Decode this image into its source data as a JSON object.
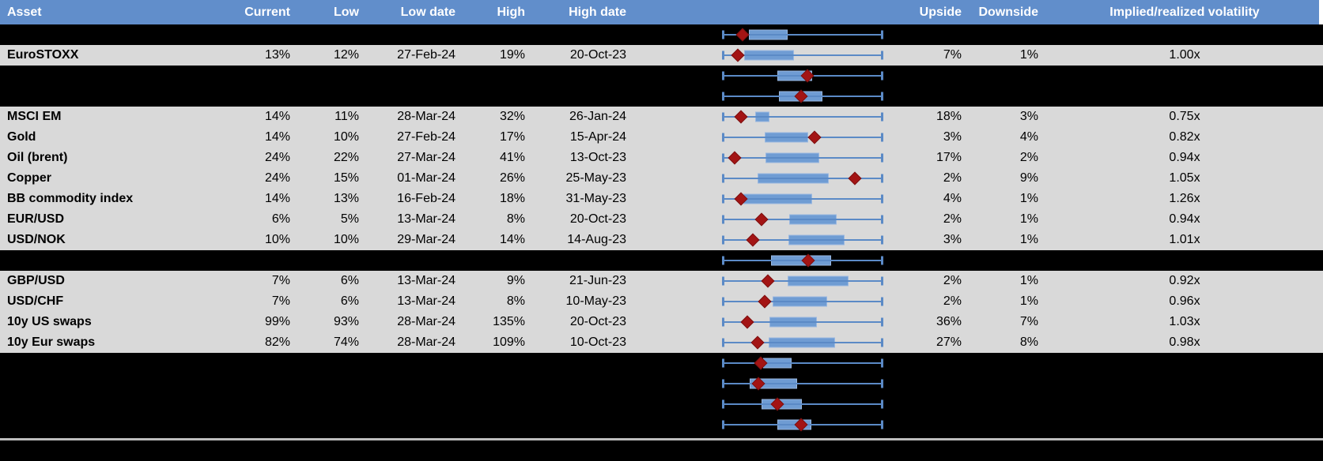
{
  "header": {
    "columns": [
      "Asset",
      "Current",
      "Low",
      "Low date",
      "High",
      "High date",
      "",
      "Upside",
      "Downside",
      "Implied/realized volatility"
    ]
  },
  "colors": {
    "header_bg": "#618ecb",
    "header_text": "#ffffff",
    "data_row_bg": "#d9d9d9",
    "blank_row_bg": "#000000",
    "text": "#000000",
    "whisker_blue": "#5b8ac6",
    "box_fill_blue": "#6f9cd3",
    "box_border_blue": "#9ab8e0",
    "marker_red": "#a31414",
    "divider_gray": "#bdbdbd"
  },
  "chart_note": "Each row has a horizontal box-whisker plot; box_lo/box_hi/marker are percents of the whisker span (left cap = 0, right cap = 100). Marker is a red diamond (current level within 1y range).",
  "rows": [
    {
      "type": "blank",
      "asset": "",
      "current": "",
      "low": "",
      "low_date": "",
      "high": "",
      "high_date": "",
      "upside": "",
      "downside": "",
      "impl_real": "",
      "box": {
        "lo": 16.7,
        "hi": 40.7,
        "marker": 12.7
      }
    },
    {
      "type": "data",
      "asset": "EuroSTOXX",
      "current": "13%",
      "low": "12%",
      "low_date": "27-Feb-24",
      "high": "19%",
      "high_date": "20-Oct-23",
      "upside": "7%",
      "downside": "1%",
      "impl_real": "1.00x",
      "box": {
        "lo": 13.7,
        "hi": 44.6,
        "marker": 9.8
      }
    },
    {
      "type": "blank",
      "asset": "",
      "current": "",
      "low": "",
      "low_date": "",
      "high": "",
      "high_date": "",
      "upside": "",
      "downside": "",
      "impl_real": "",
      "box": {
        "lo": 34.3,
        "hi": 55.9,
        "marker": 52.9
      }
    },
    {
      "type": "blank",
      "asset": "",
      "current": "",
      "low": "",
      "low_date": "",
      "high": "",
      "high_date": "",
      "upside": "",
      "downside": "",
      "impl_real": "",
      "box": {
        "lo": 35.3,
        "hi": 62.3,
        "marker": 49.0
      }
    },
    {
      "type": "data",
      "asset": "MSCI EM",
      "current": "14%",
      "low": "11%",
      "low_date": "28-Mar-24",
      "high": "32%",
      "high_date": "26-Jan-24",
      "upside": "18%",
      "downside": "3%",
      "impl_real": "0.75x",
      "box": {
        "lo": 20.6,
        "hi": 29.4,
        "marker": 11.8
      }
    },
    {
      "type": "data",
      "asset": "Gold",
      "current": "14%",
      "low": "10%",
      "low_date": "27-Feb-24",
      "high": "17%",
      "high_date": "15-Apr-24",
      "upside": "3%",
      "downside": "4%",
      "impl_real": "0.82x",
      "box": {
        "lo": 26.5,
        "hi": 53.4,
        "marker": 57.4
      }
    },
    {
      "type": "data",
      "asset": "Oil (brent)",
      "current": "24%",
      "low": "22%",
      "low_date": "27-Mar-24",
      "high": "41%",
      "high_date": "13-Oct-23",
      "upside": "17%",
      "downside": "2%",
      "impl_real": "0.94x",
      "box": {
        "lo": 27.0,
        "hi": 60.3,
        "marker": 7.8
      }
    },
    {
      "type": "data",
      "asset": "Copper",
      "current": "24%",
      "low": "15%",
      "low_date": "01-Mar-24",
      "high": "26%",
      "high_date": "25-May-23",
      "upside": "2%",
      "downside": "9%",
      "impl_real": "1.05x",
      "box": {
        "lo": 22.1,
        "hi": 66.2,
        "marker": 82.4
      }
    },
    {
      "type": "data",
      "asset": "BB commodity index",
      "current": "14%",
      "low": "13%",
      "low_date": "16-Feb-24",
      "high": "18%",
      "high_date": "31-May-23",
      "upside": "4%",
      "downside": "1%",
      "impl_real": "1.26x",
      "box": {
        "lo": 13.2,
        "hi": 55.9,
        "marker": 11.8
      }
    },
    {
      "type": "data",
      "asset": "EUR/USD",
      "current": "6%",
      "low": "5%",
      "low_date": "13-Mar-24",
      "high": "8%",
      "high_date": "20-Oct-23",
      "upside": "2%",
      "downside": "1%",
      "impl_real": "0.94x",
      "box": {
        "lo": 41.7,
        "hi": 71.1,
        "marker": 24.5
      }
    },
    {
      "type": "data",
      "asset": "USD/NOK",
      "current": "10%",
      "low": "10%",
      "low_date": "29-Mar-24",
      "high": "14%",
      "high_date": "14-Aug-23",
      "upside": "3%",
      "downside": "1%",
      "impl_real": "1.01x",
      "box": {
        "lo": 41.2,
        "hi": 76.0,
        "marker": 19.1
      }
    },
    {
      "type": "blank",
      "asset": "",
      "current": "",
      "low": "",
      "low_date": "",
      "high": "",
      "high_date": "",
      "upside": "",
      "downside": "",
      "impl_real": "",
      "box": {
        "lo": 30.4,
        "hi": 67.7,
        "marker": 53.4
      }
    },
    {
      "type": "data",
      "asset": "GBP/USD",
      "current": "7%",
      "low": "6%",
      "low_date": "13-Mar-24",
      "high": "9%",
      "high_date": "21-Jun-23",
      "upside": "2%",
      "downside": "1%",
      "impl_real": "0.92x",
      "box": {
        "lo": 40.7,
        "hi": 78.4,
        "marker": 28.4
      }
    },
    {
      "type": "data",
      "asset": "USD/CHF",
      "current": "7%",
      "low": "6%",
      "low_date": "13-Mar-24",
      "high": "8%",
      "high_date": "10-May-23",
      "upside": "2%",
      "downside": "1%",
      "impl_real": "0.96x",
      "box": {
        "lo": 31.4,
        "hi": 65.2,
        "marker": 26.5
      }
    },
    {
      "type": "data",
      "asset": "10y US swaps",
      "current": "99%",
      "low": "93%",
      "low_date": "28-Mar-24",
      "high": "135%",
      "high_date": "20-Oct-23",
      "upside": "36%",
      "downside": "7%",
      "impl_real": "1.03x",
      "box": {
        "lo": 29.4,
        "hi": 58.8,
        "marker": 15.7
      }
    },
    {
      "type": "data",
      "asset": "10y Eur swaps",
      "current": "82%",
      "low": "74%",
      "low_date": "28-Mar-24",
      "high": "109%",
      "high_date": "10-Oct-23",
      "upside": "27%",
      "downside": "8%",
      "impl_real": "0.98x",
      "box": {
        "lo": 28.9,
        "hi": 70.1,
        "marker": 22.1
      }
    },
    {
      "type": "blank",
      "asset": "",
      "current": "",
      "low": "",
      "low_date": "",
      "high": "",
      "high_date": "",
      "upside": "",
      "downside": "",
      "impl_real": "",
      "box": {
        "lo": 25.5,
        "hi": 43.1,
        "marker": 24.0
      }
    },
    {
      "type": "blank",
      "asset": "",
      "current": "",
      "low": "",
      "low_date": "",
      "high": "",
      "high_date": "",
      "upside": "",
      "downside": "",
      "impl_real": "",
      "box": {
        "lo": 17.2,
        "hi": 46.6,
        "marker": 22.5
      }
    },
    {
      "type": "blank",
      "asset": "",
      "current": "",
      "low": "",
      "low_date": "",
      "high": "",
      "high_date": "",
      "upside": "",
      "downside": "",
      "impl_real": "",
      "box": {
        "lo": 24.5,
        "hi": 49.5,
        "marker": 34.3
      }
    },
    {
      "type": "blank",
      "asset": "",
      "current": "",
      "low": "",
      "low_date": "",
      "high": "",
      "high_date": "",
      "upside": "",
      "downside": "",
      "impl_real": "",
      "box": {
        "lo": 34.3,
        "hi": 55.4,
        "marker": 49.0
      }
    }
  ]
}
